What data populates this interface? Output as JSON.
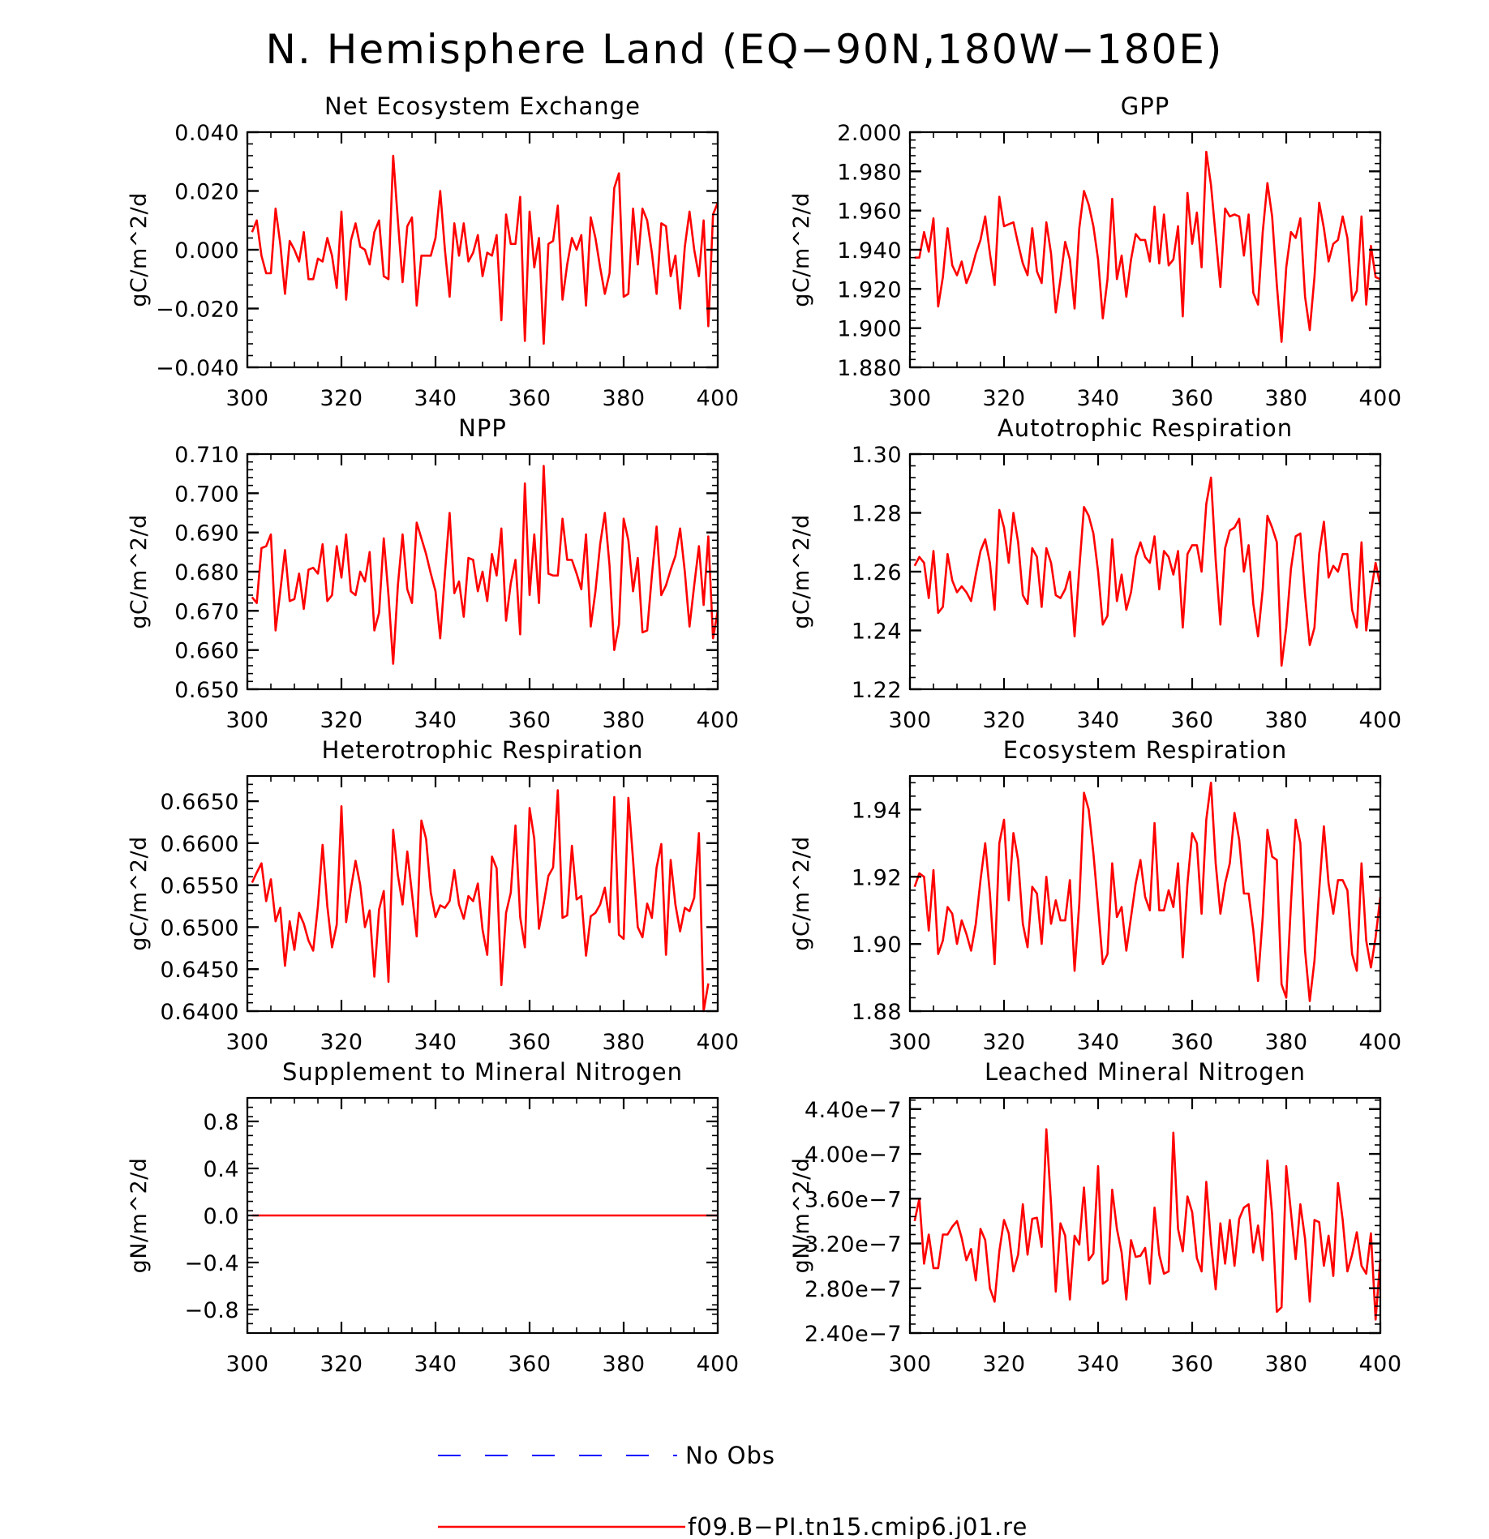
{
  "title": "N. Hemisphere Land (EQ−90N,180W−180E)",
  "colors": {
    "model": "#ff0000",
    "obs": "#0000ff",
    "axis": "#000000"
  },
  "legend": [
    {
      "label": "No Obs",
      "style": "dashed",
      "color": "#0000ff"
    },
    {
      "label": "f09.B−PI.tn15.cmip6.j01.re",
      "style": "solid",
      "color": "#ff0000"
    }
  ],
  "chart_data": [
    {
      "type": "line",
      "title": "Net Ecosystem Exchange",
      "ylabel": "gC/m^2/d",
      "xlim": [
        300,
        400
      ],
      "ylim": [
        -0.04,
        0.04
      ],
      "xticks": [
        "300",
        "320",
        "340",
        "360",
        "380",
        "400"
      ],
      "yticks": [
        "−0.040",
        "−0.020",
        "0.000",
        "0.020",
        "0.040"
      ],
      "x_start": 301,
      "series": [
        {
          "values": [
            0.006,
            0.01,
            -0.002,
            -0.008,
            -0.008,
            0.014,
            0.002,
            -0.015,
            0.003,
            0.0,
            -0.004,
            0.006,
            -0.01,
            -0.01,
            -0.003,
            -0.004,
            0.004,
            -0.002,
            -0.013,
            0.013,
            -0.017,
            0.003,
            0.009,
            0.001,
            0.0,
            -0.005,
            0.006,
            0.01,
            -0.009,
            -0.01,
            0.032,
            0.01,
            -0.011,
            0.008,
            0.011,
            -0.019,
            -0.002,
            -0.002,
            -0.002,
            0.004,
            0.02,
            0.0,
            -0.016,
            0.009,
            -0.002,
            0.009,
            -0.004,
            -0.001,
            0.005,
            -0.009,
            -0.001,
            -0.002,
            0.005,
            -0.024,
            0.012,
            0.002,
            0.002,
            0.018,
            -0.031,
            0.013,
            -0.006,
            0.004,
            -0.032,
            0.002,
            0.003,
            0.015,
            -0.017,
            -0.005,
            0.004,
            0.0,
            0.005,
            -0.019,
            0.011,
            0.004,
            -0.006,
            -0.015,
            -0.008,
            0.021,
            0.026,
            -0.016,
            -0.015,
            0.014,
            -0.005,
            0.014,
            0.01,
            -0.001,
            -0.015,
            0.009,
            0.008,
            -0.009,
            -0.002,
            -0.02,
            0.001,
            0.013,
            0.0,
            -0.009,
            0.01,
            -0.026,
            0.012,
            0.016
          ]
        }
      ]
    },
    {
      "type": "line",
      "title": "GPP",
      "ylabel": "gC/m^2/d",
      "xlim": [
        300,
        400
      ],
      "ylim": [
        1.88,
        2.0
      ],
      "xticks": [
        "300",
        "320",
        "340",
        "360",
        "380",
        "400"
      ],
      "yticks": [
        "1.880",
        "1.900",
        "1.920",
        "1.940",
        "1.960",
        "1.980",
        "2.000"
      ],
      "x_start": 301,
      "series": [
        {
          "values": [
            1.936,
            1.936,
            1.949,
            1.939,
            1.956,
            1.911,
            1.926,
            1.951,
            1.932,
            1.927,
            1.934,
            1.923,
            1.929,
            1.938,
            1.945,
            1.957,
            1.938,
            1.922,
            1.967,
            1.952,
            1.953,
            1.954,
            1.943,
            1.933,
            1.927,
            1.951,
            1.929,
            1.923,
            1.954,
            1.938,
            1.908,
            1.925,
            1.944,
            1.935,
            1.91,
            1.951,
            1.97,
            1.963,
            1.952,
            1.935,
            1.905,
            1.925,
            1.966,
            1.925,
            1.937,
            1.916,
            1.935,
            1.948,
            1.945,
            1.945,
            1.934,
            1.962,
            1.933,
            1.958,
            1.932,
            1.935,
            1.952,
            1.906,
            1.969,
            1.943,
            1.959,
            1.931,
            1.99,
            1.973,
            1.947,
            1.921,
            1.961,
            1.957,
            1.958,
            1.957,
            1.937,
            1.958,
            1.918,
            1.912,
            1.949,
            1.974,
            1.957,
            1.922,
            1.893,
            1.931,
            1.949,
            1.946,
            1.956,
            1.916,
            1.899,
            1.926,
            1.964,
            1.951,
            1.934,
            1.943,
            1.945,
            1.957,
            1.946,
            1.914,
            1.919,
            1.957,
            1.912,
            1.942,
            1.926,
            1.925
          ]
        }
      ]
    },
    {
      "type": "line",
      "title": "NPP",
      "ylabel": "gC/m^2/d",
      "xlim": [
        300,
        400
      ],
      "ylim": [
        0.65,
        0.71
      ],
      "xticks": [
        "300",
        "320",
        "340",
        "360",
        "380",
        "400"
      ],
      "yticks": [
        "0.650",
        "0.660",
        "0.670",
        "0.680",
        "0.690",
        "0.700",
        "0.710"
      ],
      "x_start": 301,
      "series": [
        {
          "values": [
            0.6735,
            0.672,
            0.686,
            0.6865,
            0.6895,
            0.665,
            0.675,
            0.6855,
            0.6725,
            0.673,
            0.6795,
            0.6705,
            0.6805,
            0.681,
            0.6795,
            0.687,
            0.6725,
            0.674,
            0.6865,
            0.6785,
            0.6895,
            0.675,
            0.674,
            0.68,
            0.6775,
            0.685,
            0.665,
            0.6695,
            0.6885,
            0.674,
            0.6565,
            0.6765,
            0.6895,
            0.6755,
            0.672,
            0.6925,
            0.6885,
            0.6845,
            0.6795,
            0.675,
            0.663,
            0.6795,
            0.695,
            0.6745,
            0.6775,
            0.6685,
            0.6835,
            0.683,
            0.675,
            0.68,
            0.6725,
            0.6845,
            0.679,
            0.691,
            0.6675,
            0.677,
            0.683,
            0.664,
            0.7025,
            0.674,
            0.6895,
            0.672,
            0.707,
            0.6795,
            0.679,
            0.679,
            0.6935,
            0.683,
            0.683,
            0.6795,
            0.6755,
            0.6895,
            0.666,
            0.675,
            0.687,
            0.695,
            0.6815,
            0.66,
            0.6665,
            0.6935,
            0.688,
            0.675,
            0.6835,
            0.6645,
            0.665,
            0.679,
            0.6915,
            0.674,
            0.6765,
            0.6805,
            0.684,
            0.691,
            0.68,
            0.666,
            0.6765,
            0.6865,
            0.6715,
            0.689,
            0.663,
            0.67
          ]
        }
      ]
    },
    {
      "type": "line",
      "title": "Autotrophic Respiration",
      "ylabel": "gC/m^2/d",
      "xlim": [
        300,
        400
      ],
      "ylim": [
        1.22,
        1.3
      ],
      "xticks": [
        "300",
        "320",
        "340",
        "360",
        "380",
        "400"
      ],
      "yticks": [
        "1.22",
        "1.24",
        "1.26",
        "1.28",
        "1.30"
      ],
      "x_start": 301,
      "series": [
        {
          "values": [
            1.262,
            1.265,
            1.263,
            1.251,
            1.267,
            1.246,
            1.248,
            1.266,
            1.257,
            1.253,
            1.255,
            1.253,
            1.25,
            1.259,
            1.267,
            1.271,
            1.263,
            1.247,
            1.281,
            1.275,
            1.263,
            1.28,
            1.27,
            1.252,
            1.249,
            1.268,
            1.265,
            1.248,
            1.268,
            1.263,
            1.252,
            1.251,
            1.254,
            1.26,
            1.238,
            1.261,
            1.282,
            1.279,
            1.273,
            1.26,
            1.242,
            1.245,
            1.271,
            1.25,
            1.259,
            1.247,
            1.253,
            1.265,
            1.27,
            1.265,
            1.263,
            1.272,
            1.254,
            1.267,
            1.265,
            1.259,
            1.267,
            1.241,
            1.266,
            1.269,
            1.269,
            1.26,
            1.283,
            1.292,
            1.264,
            1.242,
            1.268,
            1.274,
            1.275,
            1.278,
            1.26,
            1.269,
            1.249,
            1.238,
            1.254,
            1.279,
            1.275,
            1.27,
            1.228,
            1.241,
            1.261,
            1.272,
            1.273,
            1.252,
            1.235,
            1.241,
            1.266,
            1.277,
            1.258,
            1.262,
            1.26,
            1.266,
            1.266,
            1.247,
            1.241,
            1.27,
            1.24,
            1.253,
            1.263,
            1.255
          ]
        }
      ]
    },
    {
      "type": "line",
      "title": "Heterotrophic Respiration",
      "ylabel": "gC/m^2/d",
      "xlim": [
        300,
        400
      ],
      "ylim": [
        0.64,
        0.668
      ],
      "xticks": [
        "300",
        "320",
        "340",
        "360",
        "380",
        "400"
      ],
      "yticks": [
        "0.6400",
        "0.6450",
        "0.6500",
        "0.6550",
        "0.6600",
        "0.6650"
      ],
      "x_start": 301,
      "series": [
        {
          "values": [
            0.6553,
            0.6565,
            0.6576,
            0.6531,
            0.6557,
            0.6507,
            0.6523,
            0.6454,
            0.6507,
            0.6473,
            0.6517,
            0.6504,
            0.6484,
            0.6472,
            0.6525,
            0.6598,
            0.6525,
            0.6476,
            0.6503,
            0.6644,
            0.6506,
            0.6545,
            0.6579,
            0.655,
            0.65,
            0.652,
            0.6441,
            0.6521,
            0.6543,
            0.6435,
            0.6616,
            0.6562,
            0.6527,
            0.659,
            0.654,
            0.6489,
            0.6627,
            0.6605,
            0.6541,
            0.6512,
            0.6526,
            0.6523,
            0.6531,
            0.6568,
            0.6527,
            0.651,
            0.6537,
            0.6531,
            0.6552,
            0.6497,
            0.6467,
            0.6584,
            0.657,
            0.6431,
            0.6517,
            0.6541,
            0.6621,
            0.6512,
            0.6476,
            0.6642,
            0.6605,
            0.6498,
            0.6528,
            0.6561,
            0.6571,
            0.6663,
            0.6511,
            0.6514,
            0.6597,
            0.6533,
            0.6537,
            0.6466,
            0.6513,
            0.6517,
            0.6527,
            0.6547,
            0.6506,
            0.6655,
            0.6491,
            0.6486,
            0.6654,
            0.658,
            0.65,
            0.6488,
            0.6528,
            0.6511,
            0.6571,
            0.6599,
            0.6467,
            0.658,
            0.6527,
            0.6495,
            0.6523,
            0.6519,
            0.6535,
            0.6612,
            0.64,
            0.6433
          ]
        }
      ]
    },
    {
      "type": "line",
      "title": "Ecosystem Respiration",
      "ylabel": "gC/m^2/d",
      "xlim": [
        300,
        400
      ],
      "ylim": [
        1.88,
        1.95
      ],
      "xticks": [
        "300",
        "320",
        "340",
        "360",
        "380",
        "400"
      ],
      "yticks": [
        "1.88",
        "1.90",
        "1.92",
        "1.94"
      ],
      "x_start": 301,
      "series": [
        {
          "values": [
            1.917,
            1.921,
            1.92,
            1.904,
            1.922,
            1.897,
            1.901,
            1.911,
            1.909,
            1.9,
            1.907,
            1.903,
            1.898,
            1.906,
            1.919,
            1.93,
            1.915,
            1.894,
            1.93,
            1.937,
            1.913,
            1.933,
            1.925,
            1.906,
            1.899,
            1.917,
            1.915,
            1.9,
            1.92,
            1.906,
            1.913,
            1.907,
            1.907,
            1.919,
            1.892,
            1.912,
            1.945,
            1.94,
            1.927,
            1.911,
            1.894,
            1.897,
            1.924,
            1.908,
            1.911,
            1.898,
            1.908,
            1.918,
            1.925,
            1.914,
            1.91,
            1.936,
            1.91,
            1.91,
            1.916,
            1.911,
            1.924,
            1.896,
            1.918,
            1.933,
            1.93,
            1.909,
            1.937,
            1.948,
            1.924,
            1.909,
            1.918,
            1.924,
            1.939,
            1.931,
            1.915,
            1.915,
            1.904,
            1.889,
            1.908,
            1.934,
            1.926,
            1.925,
            1.888,
            1.884,
            1.912,
            1.937,
            1.93,
            1.898,
            1.883,
            1.895,
            1.916,
            1.935,
            1.918,
            1.909,
            1.919,
            1.919,
            1.916,
            1.897,
            1.892,
            1.924,
            1.901,
            1.893,
            1.902,
            1.914
          ]
        }
      ]
    },
    {
      "type": "line",
      "title": "Supplement to Mineral Nitrogen",
      "ylabel": "gN/m^2/d",
      "xlim": [
        300,
        400
      ],
      "ylim": [
        -1.0,
        1.0
      ],
      "xticks": [
        "300",
        "320",
        "340",
        "360",
        "380",
        "400"
      ],
      "yticks": [
        "−0.8",
        "−0.4",
        "0.0",
        "0.4",
        "0.8"
      ],
      "x_start": 301,
      "series": [
        {
          "values": [
            0,
            0
          ],
          "x": [
            301,
            400
          ]
        }
      ]
    },
    {
      "type": "line",
      "title": "Leached Mineral Nitrogen",
      "ylabel": "gN/m^2/d",
      "xlim": [
        300,
        400
      ],
      "ylim": [
        2.4e-07,
        4.5e-07
      ],
      "xticks": [
        "300",
        "320",
        "340",
        "360",
        "380",
        "400"
      ],
      "yticks": [
        "2.40e−7",
        "2.80e−7",
        "3.20e−7",
        "3.60e−7",
        "4.00e−7",
        "4.40e−7"
      ],
      "x_start": 301,
      "series": [
        {
          "values": [
            3.4e-07,
            3.6e-07,
            3.02e-07,
            3.28e-07,
            2.98e-07,
            2.98e-07,
            3.28e-07,
            3.28e-07,
            3.35e-07,
            3.4e-07,
            3.25e-07,
            3.05e-07,
            3.15e-07,
            2.87e-07,
            3.33e-07,
            3.23e-07,
            2.8e-07,
            2.68e-07,
            3.13e-07,
            3.41e-07,
            3.29e-07,
            2.95e-07,
            3.1e-07,
            3.55e-07,
            3.1e-07,
            3.42e-07,
            3.43e-07,
            3.17e-07,
            4.22e-07,
            3.55e-07,
            2.77e-07,
            3.38e-07,
            3.27e-07,
            2.7e-07,
            3.27e-07,
            3.19e-07,
            3.7e-07,
            3.05e-07,
            3.11e-07,
            3.89e-07,
            2.84e-07,
            2.87e-07,
            3.68e-07,
            3.33e-07,
            3.12e-07,
            2.7e-07,
            3.23e-07,
            3.08e-07,
            3.09e-07,
            3.16e-07,
            2.84e-07,
            3.52e-07,
            3.1e-07,
            2.93e-07,
            2.95e-07,
            4.19e-07,
            3.33e-07,
            3.13e-07,
            3.62e-07,
            3.48e-07,
            3.07e-07,
            2.95e-07,
            3.75e-07,
            3.21e-07,
            2.79e-07,
            3.38e-07,
            3.02e-07,
            3.41e-07,
            3e-07,
            3.42e-07,
            3.52e-07,
            3.55e-07,
            3.12e-07,
            3.36e-07,
            3.05e-07,
            3.94e-07,
            3.46e-07,
            2.59e-07,
            2.63e-07,
            3.89e-07,
            3.48e-07,
            3.06e-07,
            3.55e-07,
            3.24e-07,
            2.68e-07,
            3.41e-07,
            3.39e-07,
            3e-07,
            3.27e-07,
            2.91e-07,
            3.74e-07,
            3.41e-07,
            2.95e-07,
            3.1e-07,
            3.3e-07,
            3e-07,
            2.93e-07,
            3.29e-07,
            2.52e-07,
            3.06e-07
          ]
        }
      ]
    }
  ]
}
